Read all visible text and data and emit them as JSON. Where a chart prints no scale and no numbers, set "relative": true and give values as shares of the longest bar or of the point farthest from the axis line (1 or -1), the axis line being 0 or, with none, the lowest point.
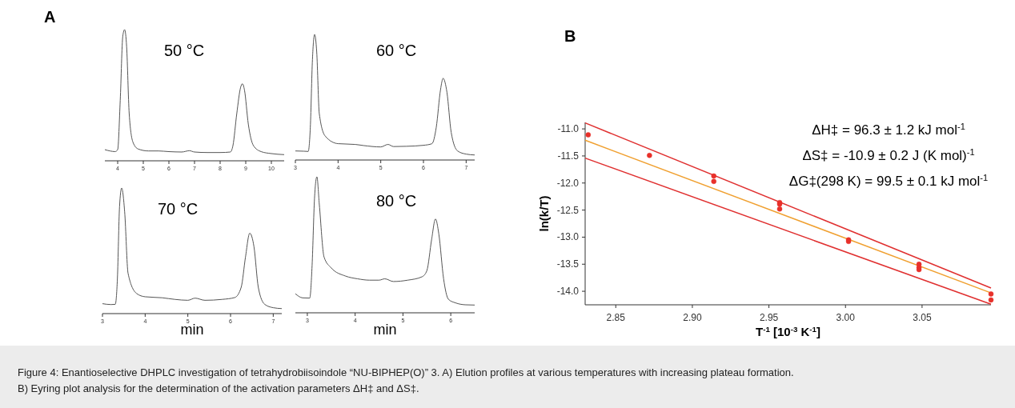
{
  "chart_data": [
    {
      "type": "line",
      "title": "A",
      "relative": true,
      "tick_labels": "x",
      "annotations": [
        "50 °C"
      ],
      "xlim": [
        3.5,
        10.5
      ],
      "xticks": [
        4,
        5,
        6,
        7,
        8,
        9,
        10
      ],
      "series": [
        {
          "color": "#555555",
          "x": [
            3.5,
            3.7,
            3.9,
            4.0,
            4.1,
            4.2,
            4.27,
            4.35,
            4.45,
            4.6,
            4.8,
            5.2,
            5.6,
            6.0,
            6.5,
            6.8,
            7.0,
            7.5,
            8.0,
            8.4,
            8.5,
            8.65,
            8.8,
            8.87,
            8.95,
            9.1,
            9.3,
            9.6,
            10.0,
            10.5
          ],
          "values": [
            0.085,
            0.075,
            0.07,
            0.085,
            0.46,
            0.95,
            1,
            0.87,
            0.36,
            0.14,
            0.09,
            0.075,
            0.075,
            0.07,
            0.067,
            0.077,
            0.067,
            0.063,
            0.063,
            0.067,
            0.116,
            0.36,
            0.56,
            0.587,
            0.54,
            0.28,
            0.116,
            0.07,
            0.055,
            0.047
          ]
        }
      ]
    },
    {
      "type": "line",
      "relative": true,
      "tick_labels": "x",
      "annotations": [
        "60 °C"
      ],
      "xlim": [
        3,
        7.2
      ],
      "xticks": [
        3,
        4,
        5,
        6,
        7
      ],
      "series": [
        {
          "color": "#555555",
          "x": [
            3.0,
            3.2,
            3.3,
            3.35,
            3.4,
            3.45,
            3.5,
            3.56,
            3.7,
            4.0,
            4.4,
            4.6,
            5.0,
            5.17,
            5.3,
            5.6,
            6.0,
            6.2,
            6.3,
            6.4,
            6.46,
            6.55,
            6.65,
            6.8,
            7.0,
            7.2
          ],
          "values": [
            0.072,
            0.07,
            0.068,
            0.26,
            0.8,
            1,
            0.86,
            0.37,
            0.19,
            0.13,
            0.124,
            0.115,
            0.104,
            0.124,
            0.107,
            0.109,
            0.117,
            0.13,
            0.26,
            0.56,
            0.65,
            0.54,
            0.22,
            0.072,
            0.047,
            0.04
          ]
        }
      ]
    },
    {
      "type": "line",
      "relative": true,
      "tick_labels": "x",
      "xlabel": "min",
      "annotations": [
        "70 °C"
      ],
      "xlim": [
        3,
        7.2
      ],
      "xticks": [
        3,
        4,
        5,
        6,
        7
      ],
      "series": [
        {
          "color": "#555555",
          "x": [
            3.0,
            3.2,
            3.3,
            3.35,
            3.4,
            3.45,
            3.52,
            3.6,
            3.8,
            4.0,
            4.4,
            4.7,
            5.0,
            5.17,
            5.4,
            5.8,
            6.1,
            6.25,
            6.35,
            6.45,
            6.55,
            6.65,
            6.8,
            7.0,
            7.2
          ],
          "values": [
            0.079,
            0.072,
            0.074,
            0.28,
            0.85,
            1,
            0.81,
            0.32,
            0.16,
            0.134,
            0.126,
            0.113,
            0.106,
            0.123,
            0.106,
            0.113,
            0.128,
            0.21,
            0.45,
            0.64,
            0.53,
            0.21,
            0.074,
            0.047,
            0.04
          ]
        }
      ]
    },
    {
      "type": "line",
      "relative": true,
      "tick_labels": "x",
      "xlabel": "min",
      "annotations": [
        "80 °C"
      ],
      "xlim": [
        2.75,
        6.5
      ],
      "xticks": [
        3,
        4,
        5,
        6
      ],
      "series": [
        {
          "color": "#555555",
          "x": [
            2.75,
            2.9,
            3.05,
            3.1,
            3.15,
            3.2,
            3.25,
            3.35,
            3.5,
            3.8,
            4.05,
            4.3,
            4.5,
            4.62,
            4.8,
            5.1,
            5.4,
            5.5,
            5.6,
            5.68,
            5.75,
            5.85,
            5.95,
            6.1,
            6.3,
            6.5
          ],
          "values": [
            0.14,
            0.11,
            0.108,
            0.35,
            0.84,
            1,
            0.8,
            0.41,
            0.33,
            0.27,
            0.25,
            0.24,
            0.24,
            0.25,
            0.23,
            0.24,
            0.265,
            0.31,
            0.54,
            0.69,
            0.58,
            0.25,
            0.1,
            0.073,
            0.059,
            0.057
          ]
        }
      ]
    },
    {
      "type": "line",
      "title": "B",
      "xlabel": "T$^{-1}$ [10$^{-3}$ K$^{-1}$]",
      "ylabel": "ln(k/T)",
      "xlim": [
        2.83,
        3.095
      ],
      "ylim": [
        -14.25,
        -10.88
      ],
      "xticks": [
        {
          "value": 2.85,
          "label": "2.85"
        },
        {
          "value": 2.9,
          "label": "2.90"
        },
        {
          "value": 2.95,
          "label": "2.95"
        },
        {
          "value": 3.0,
          "label": "3.00"
        },
        {
          "value": 3.05,
          "label": "3.05"
        }
      ],
      "yticks": [
        {
          "value": -11,
          "label": "-11.0"
        },
        {
          "value": -11.5,
          "label": "-11.5"
        },
        {
          "value": -12,
          "label": "-12.0"
        },
        {
          "value": -12.5,
          "label": "-12.5"
        },
        {
          "value": -13,
          "label": "-13.0"
        },
        {
          "value": -13.5,
          "label": "-13.5"
        },
        {
          "value": -14,
          "label": "-14.0"
        }
      ],
      "annotations": [
        "ΔH‡ = 96.3 ± 1.2 kJ mol$^{-1}$",
        "ΔS‡  = -10.9 ± 0.2 J (K mol)$^{-1}$",
        "ΔG‡(298 K)  = 99.5 ± 0.1 kJ mol$^{-1}$",
        "Figure 4: Enantioselective DHPLC investigation of tetrahydrobiisoindole “NU-BIPHEP(O)” 3. A) Elution profiles at various temperatures with increasing plateau formation. B) Eyring plot analysis for the determination of the activation parameters ΔH‡ and ΔS‡."
      ],
      "series": [
        {
          "color": "#e03030",
          "x": [
            2.83,
            3.095
          ],
          "values": [
            -10.89,
            -13.94
          ]
        },
        {
          "color": "#f0a030",
          "x": [
            2.83,
            3.095
          ],
          "values": [
            -11.21,
            -14.03
          ]
        },
        {
          "color": "#e03030",
          "x": [
            2.83,
            3.095
          ],
          "values": [
            -11.54,
            -14.24
          ]
        },
        {
          "type": "scatter",
          "marker": "circle",
          "color": "#e8302a",
          "x": [
            2.832,
            2.872,
            2.914,
            2.914,
            2.957,
            2.957,
            2.957,
            3.002,
            3.002,
            3.048,
            3.048,
            3.048,
            3.095,
            3.095
          ],
          "values": [
            -11.11,
            -11.49,
            -11.87,
            -11.97,
            -12.36,
            -12.39,
            -12.48,
            -13.05,
            -13.08,
            -13.5,
            -13.56,
            -13.6,
            -14.05,
            -14.16
          ]
        }
      ]
    }
  ]
}
